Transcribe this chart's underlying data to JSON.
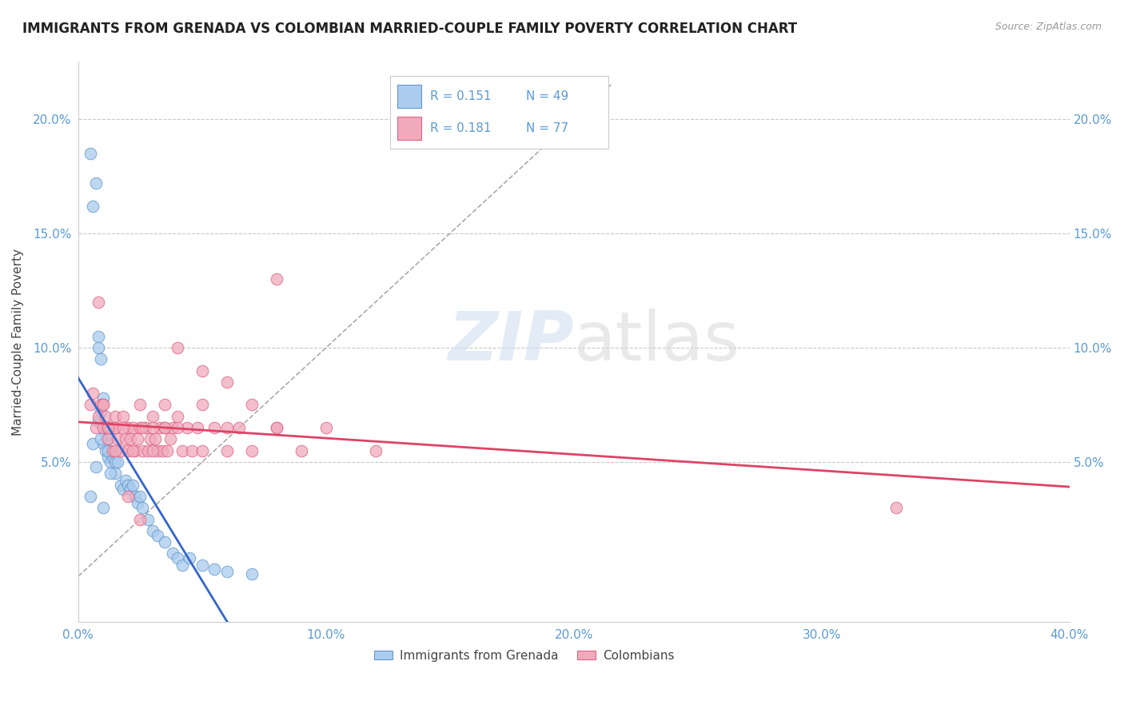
{
  "title": "IMMIGRANTS FROM GRENADA VS COLOMBIAN MARRIED-COUPLE FAMILY POVERTY CORRELATION CHART",
  "source": "Source: ZipAtlas.com",
  "ylabel": "Married-Couple Family Poverty",
  "xlim": [
    0.0,
    0.4
  ],
  "ylim": [
    -0.02,
    0.225
  ],
  "xticks": [
    0.0,
    0.1,
    0.2,
    0.3,
    0.4
  ],
  "xticklabels": [
    "0.0%",
    "10.0%",
    "20.0%",
    "30.0%",
    "40.0%"
  ],
  "yticks": [
    0.05,
    0.1,
    0.15,
    0.2
  ],
  "yticklabels": [
    "5.0%",
    "10.0%",
    "15.0%",
    "20.0%"
  ],
  "tick_color": "#5b9bd5",
  "grid_color": "#c8c8c8",
  "background_color": "#ffffff",
  "title_fontsize": 12,
  "axis_label_fontsize": 11,
  "tick_fontsize": 11,
  "legend_R1": "R = 0.151",
  "legend_N1": "N = 49",
  "legend_R2": "R = 0.181",
  "legend_N2": "N = 77",
  "legend_color1": "#aaccee",
  "legend_color2": "#f0aabc",
  "scatter_color1": "#aaccee",
  "scatter_color2": "#f0aabc",
  "scatter_edgecolor1": "#6699cc",
  "scatter_edgecolor2": "#dd6688",
  "trend_color1": "#3366cc",
  "trend_color2": "#dd4466",
  "ref_line_color": "#aaaaaa",
  "watermark_zip": "ZIP",
  "watermark_atlas": "atlas",
  "grenada_x": [
    0.005,
    0.006,
    0.007,
    0.008,
    0.008,
    0.009,
    0.009,
    0.01,
    0.01,
    0.011,
    0.011,
    0.012,
    0.012,
    0.013,
    0.014,
    0.015,
    0.015,
    0.016,
    0.017,
    0.018,
    0.019,
    0.02,
    0.021,
    0.022,
    0.023,
    0.024,
    0.025,
    0.026,
    0.028,
    0.03,
    0.032,
    0.035,
    0.038,
    0.04,
    0.042,
    0.045,
    0.05,
    0.055,
    0.06,
    0.07,
    0.005,
    0.006,
    0.007,
    0.008,
    0.009,
    0.01,
    0.011,
    0.012,
    0.013
  ],
  "grenada_y": [
    0.185,
    0.162,
    0.172,
    0.105,
    0.1,
    0.095,
    0.072,
    0.078,
    0.058,
    0.062,
    0.055,
    0.06,
    0.052,
    0.05,
    0.052,
    0.05,
    0.045,
    0.05,
    0.04,
    0.038,
    0.042,
    0.04,
    0.038,
    0.04,
    0.035,
    0.032,
    0.035,
    0.03,
    0.025,
    0.02,
    0.018,
    0.015,
    0.01,
    0.008,
    0.005,
    0.008,
    0.005,
    0.003,
    0.002,
    0.001,
    0.035,
    0.058,
    0.048,
    0.068,
    0.06,
    0.03,
    0.065,
    0.055,
    0.045
  ],
  "colombian_x": [
    0.005,
    0.006,
    0.007,
    0.008,
    0.008,
    0.009,
    0.01,
    0.01,
    0.011,
    0.012,
    0.012,
    0.013,
    0.014,
    0.015,
    0.015,
    0.016,
    0.017,
    0.018,
    0.019,
    0.02,
    0.021,
    0.022,
    0.023,
    0.024,
    0.025,
    0.026,
    0.027,
    0.028,
    0.029,
    0.03,
    0.031,
    0.032,
    0.033,
    0.034,
    0.035,
    0.036,
    0.037,
    0.038,
    0.04,
    0.042,
    0.044,
    0.046,
    0.048,
    0.05,
    0.055,
    0.06,
    0.065,
    0.07,
    0.08,
    0.09,
    0.1,
    0.12,
    0.015,
    0.02,
    0.025,
    0.03,
    0.035,
    0.04,
    0.05,
    0.06,
    0.07,
    0.08,
    0.01,
    0.012,
    0.015,
    0.018,
    0.022,
    0.026,
    0.03,
    0.035,
    0.04,
    0.05,
    0.06,
    0.33,
    0.08,
    0.02,
    0.025
  ],
  "colombian_y": [
    0.075,
    0.08,
    0.065,
    0.12,
    0.07,
    0.075,
    0.075,
    0.065,
    0.07,
    0.065,
    0.06,
    0.065,
    0.055,
    0.065,
    0.07,
    0.06,
    0.055,
    0.07,
    0.06,
    0.065,
    0.06,
    0.065,
    0.055,
    0.06,
    0.065,
    0.055,
    0.065,
    0.055,
    0.06,
    0.07,
    0.06,
    0.055,
    0.065,
    0.055,
    0.065,
    0.055,
    0.06,
    0.065,
    0.07,
    0.055,
    0.065,
    0.055,
    0.065,
    0.055,
    0.065,
    0.055,
    0.065,
    0.055,
    0.065,
    0.055,
    0.065,
    0.055,
    0.065,
    0.055,
    0.075,
    0.065,
    0.075,
    0.065,
    0.075,
    0.065,
    0.075,
    0.065,
    0.075,
    0.065,
    0.055,
    0.065,
    0.055,
    0.065,
    0.055,
    0.065,
    0.1,
    0.09,
    0.085,
    0.03,
    0.13,
    0.035,
    0.025
  ]
}
